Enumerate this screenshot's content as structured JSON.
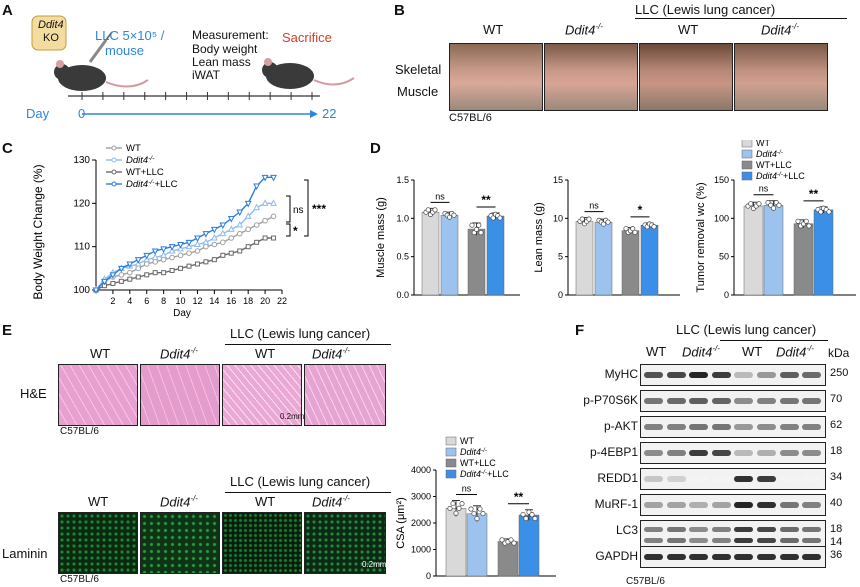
{
  "panels": {
    "A": "A",
    "B": "B",
    "C": "C",
    "D": "D",
    "E": "E",
    "F": "F"
  },
  "panelA": {
    "ko_gene": "Ddit4",
    "ko_suffix": "KO",
    "injection": "LLC 5×10⁵ /",
    "injection2": "mouse",
    "measurement_title": "Measurement:",
    "measurement_items": [
      "Body weight",
      "Lean mass",
      "iWAT"
    ],
    "sacrifice": "Sacrifice",
    "day_label": "Day",
    "day_start": "0",
    "day_end": "22"
  },
  "panelB": {
    "llc_header": "LLC (Lewis lung cancer)",
    "col_labels": [
      "WT",
      "Ddit4",
      "WT",
      "Ddit4"
    ],
    "ko_sup": "-/-",
    "row_label1": "Skeletal",
    "row_label2": "Muscle",
    "strain": "C57BL/6"
  },
  "panelE": {
    "llc_header": "LLC (Lewis lung cancer)",
    "col_labels": [
      "WT",
      "Ddit4",
      "WT",
      "Ddit4"
    ],
    "ko_sup": "-/-",
    "he_label": "H&E",
    "laminin_label": "Laminin",
    "strain1": "C57BL/6",
    "strain2": "C57BL/6",
    "scale1": "0.2mm",
    "scale2": "0.2mm"
  },
  "panelF": {
    "llc_header": "LLC (Lewis lung cancer)",
    "col_labels": [
      "WT",
      "Ddit4",
      "WT",
      "Ddit4"
    ],
    "ko_sup": "-/-",
    "kda": "kDa",
    "strain": "C57BL/6",
    "blots": [
      {
        "name": "MyHC",
        "kda": "250"
      },
      {
        "name": "p-P70S6K",
        "kda": "70"
      },
      {
        "name": "p-AKT",
        "kda": "62"
      },
      {
        "name": "p-4EBP1",
        "kda": "18"
      },
      {
        "name": "REDD1",
        "kda": "34"
      },
      {
        "name": "MuRF-1",
        "kda": "40"
      },
      {
        "name": "LC3",
        "kda": "18",
        "kda2": "14"
      },
      {
        "name": "GAPDH",
        "kda": "36"
      }
    ]
  },
  "colors": {
    "wt": "#d9d9d9",
    "ko": "#9cc3ee",
    "wt_llc": "#8a8a8a",
    "ko_llc": "#3c8fe6",
    "line_wt": "#a0a0a0",
    "line_ko": "#8fbcec",
    "line_wt_llc": "#6b6b6b",
    "line_ko_llc": "#2a7de0",
    "sacrifice": "#d0402a",
    "injection": "#2f86d6",
    "ko_box": "#f3dca0"
  },
  "chart_data": [
    {
      "id": "C",
      "type": "line",
      "ylabel": "Body Weight Change (%)",
      "xlabel": "Day",
      "ylim": [
        100,
        130
      ],
      "xlim": [
        0,
        22
      ],
      "yticks": [
        100,
        110,
        120,
        130
      ],
      "xticks": [
        2,
        4,
        6,
        8,
        10,
        12,
        14,
        16,
        18,
        20,
        22
      ],
      "x": [
        0,
        1,
        2,
        3,
        4,
        5,
        6,
        7,
        8,
        9,
        10,
        11,
        12,
        13,
        14,
        15,
        16,
        17,
        18,
        19,
        20,
        21
      ],
      "legend": {
        "entries": [
          "WT",
          "Ddit4",
          "WT+LLC",
          "Ddit4"
        ],
        "sups": [
          "",
          "-/-",
          "",
          "-/-"
        ],
        "suffixes": [
          "",
          "",
          "",
          "+LLC"
        ]
      },
      "series": [
        {
          "name": "WT",
          "values": [
            100,
            102,
            103,
            103.5,
            104,
            105,
            106,
            106.5,
            107,
            107.5,
            108,
            108.5,
            109,
            110,
            110.5,
            111,
            112,
            113,
            114,
            115,
            116,
            117
          ]
        },
        {
          "name": "Ddit4-/-",
          "values": [
            100,
            102.5,
            104,
            105,
            105.5,
            106,
            107,
            107.5,
            108,
            109,
            109.5,
            110,
            110.5,
            111,
            112,
            113,
            114,
            115,
            117,
            119,
            120,
            120
          ]
        },
        {
          "name": "WT+LLC",
          "values": [
            100,
            101,
            101.5,
            102,
            102.5,
            103,
            103.5,
            104,
            104,
            104.5,
            105,
            105.5,
            106,
            106.5,
            107,
            108,
            108.5,
            109,
            110,
            111,
            112,
            112
          ]
        },
        {
          "name": "Ddit4-/-+LLC",
          "values": [
            100,
            102,
            103.5,
            105,
            106,
            107,
            108,
            109,
            109.5,
            110,
            110.5,
            111,
            112,
            113,
            114,
            115,
            116.5,
            118,
            120,
            124,
            126,
            126
          ]
        }
      ],
      "annotations": [
        "ns",
        "***",
        "*"
      ]
    },
    {
      "id": "D1",
      "type": "bar",
      "ylabel": "Muscle mass (g)",
      "ylim": [
        0,
        1.5
      ],
      "yticks": [
        "0.0",
        "0.5",
        "1.0",
        "1.5"
      ],
      "categories": [
        "WT",
        "Ddit4-/-",
        "WT+LLC",
        "Ddit4-/-+LLC"
      ],
      "values": [
        1.08,
        1.04,
        0.86,
        1.03
      ],
      "errors": [
        0.05,
        0.04,
        0.08,
        0.04
      ],
      "significance": [
        "ns",
        "**"
      ]
    },
    {
      "id": "D2",
      "type": "bar",
      "ylabel": "Lean mass (g)",
      "ylim": [
        0,
        15
      ],
      "yticks": [
        "0",
        "5",
        "10",
        "15"
      ],
      "categories": [
        "WT",
        "Ddit4-/-",
        "WT+LLC",
        "Ddit4-/-+LLC"
      ],
      "values": [
        9.6,
        9.5,
        8.4,
        9.1
      ],
      "errors": [
        0.5,
        0.4,
        0.4,
        0.3
      ],
      "significance": [
        "ns",
        "*"
      ]
    },
    {
      "id": "D3",
      "type": "bar",
      "ylabel": "Tumor removal wc (%)",
      "ylim": [
        0,
        150
      ],
      "yticks": [
        "0",
        "50",
        "100",
        "150"
      ],
      "categories": [
        "WT",
        "Ddit4-/-",
        "WT+LLC",
        "Ddit4-/-+LLC"
      ],
      "values": [
        116,
        117,
        93,
        111
      ],
      "errors": [
        5,
        6,
        5,
        4
      ],
      "legend": {
        "entries": [
          "WT",
          "Ddit4",
          "WT+LLC",
          "Ddit4"
        ],
        "sups": [
          "",
          "-/-",
          "",
          "-/-"
        ],
        "suffixes": [
          "",
          "",
          "",
          "+LLC"
        ]
      },
      "significance": [
        "ns",
        "**"
      ]
    },
    {
      "id": "E",
      "type": "bar",
      "ylabel": "CSA (μm²)",
      "ylim": [
        0,
        4000
      ],
      "yticks": [
        "0",
        "1000",
        "2000",
        "3000",
        "4000"
      ],
      "categories": [
        "WT",
        "Ddit4-/-",
        "WT+LLC",
        "Ddit4-/-+LLC"
      ],
      "values": [
        2550,
        2350,
        1300,
        2300
      ],
      "errors": [
        300,
        300,
        100,
        200
      ],
      "legend": {
        "entries": [
          "WT",
          "Ddit4",
          "WT+LLC",
          "Ddit4"
        ],
        "sups": [
          "",
          "-/-",
          "",
          "-/-"
        ],
        "suffixes": [
          "",
          "",
          "",
          "+LLC"
        ]
      },
      "significance": [
        "ns",
        "**"
      ]
    }
  ]
}
